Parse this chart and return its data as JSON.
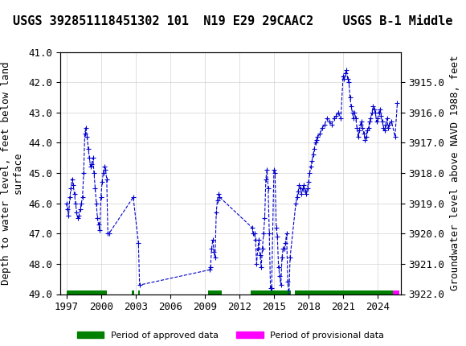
{
  "title": "USGS 392851118451302 101  N19 E29 29CAAC2    USGS B-1 Middle",
  "ylabel_left": "Depth to water level, feet below land\nsurface",
  "ylabel_right": "Groundwater level above NAVD 1988, feet",
  "xlabel": "",
  "ylim_left": [
    41.0,
    49.0
  ],
  "ylim_right": [
    3915.0,
    3922.0
  ],
  "yticks_left": [
    41.0,
    42.0,
    43.0,
    44.0,
    45.0,
    46.0,
    47.0,
    48.0,
    49.0
  ],
  "yticks_right": [
    3915.0,
    3916.0,
    3917.0,
    3918.0,
    3919.0,
    3920.0,
    3921.0,
    3922.0
  ],
  "xlim": [
    1996.5,
    2026.0
  ],
  "xticks": [
    1997,
    2000,
    2003,
    2006,
    2009,
    2012,
    2015,
    2018,
    2021,
    2024
  ],
  "background_color": "#f0f0f0",
  "plot_bg_color": "#ffffff",
  "header_color": "#1a6b3c",
  "data_color": "#0000cc",
  "approved_color": "#008000",
  "provisional_color": "#ff00ff",
  "title_fontsize": 11,
  "axis_label_fontsize": 9,
  "tick_fontsize": 9,
  "approved_periods": [
    [
      1997.0,
      2000.5
    ],
    [
      2002.7,
      2002.85
    ],
    [
      2003.2,
      2003.4
    ],
    [
      2009.3,
      2010.5
    ],
    [
      2013.0,
      2016.5
    ],
    [
      2016.8,
      2025.3
    ]
  ],
  "provisional_periods": [
    [
      2025.3,
      2025.9
    ]
  ],
  "data_points": {
    "years": [
      1997.0,
      1997.1,
      1997.2,
      1997.3,
      1997.4,
      1997.5,
      1997.6,
      1997.7,
      1997.8,
      1997.9,
      1998.0,
      1998.1,
      1998.2,
      1998.3,
      1998.4,
      1998.5,
      1998.6,
      1998.7,
      1998.8,
      1998.9,
      1999.0,
      1999.1,
      1999.2,
      1999.3,
      1999.4,
      1999.5,
      1999.6,
      1999.7,
      1999.8,
      1999.9,
      2000.0,
      2000.1,
      2000.2,
      2000.3,
      2000.4,
      2000.5,
      2000.6,
      2000.7,
      2002.8,
      2003.25,
      2003.35,
      2009.4,
      2009.5,
      2009.6,
      2009.7,
      2009.8,
      2009.9,
      2010.0,
      2010.1,
      2010.2,
      2010.3,
      2013.1,
      2013.2,
      2013.3,
      2013.4,
      2013.5,
      2013.6,
      2013.7,
      2013.8,
      2013.9,
      2014.0,
      2014.1,
      2014.2,
      2014.3,
      2014.4,
      2014.5,
      2014.6,
      2014.7,
      2014.8,
      2015.0,
      2015.1,
      2015.2,
      2015.3,
      2015.4,
      2015.5,
      2015.6,
      2015.7,
      2015.8,
      2015.9,
      2016.0,
      2016.1,
      2016.2,
      2016.3,
      2016.4,
      2016.9,
      2017.0,
      2017.1,
      2017.2,
      2017.3,
      2017.4,
      2017.5,
      2017.6,
      2017.7,
      2017.8,
      2017.9,
      2018.0,
      2018.1,
      2018.2,
      2018.3,
      2018.4,
      2018.5,
      2018.6,
      2018.7,
      2018.8,
      2019.0,
      2019.2,
      2019.4,
      2019.6,
      2019.8,
      2020.0,
      2020.2,
      2020.4,
      2020.6,
      2020.8,
      2021.0,
      2021.1,
      2021.2,
      2021.3,
      2021.4,
      2021.5,
      2021.6,
      2021.7,
      2021.8,
      2021.9,
      2022.0,
      2022.1,
      2022.2,
      2022.3,
      2022.4,
      2022.5,
      2022.6,
      2022.7,
      2022.8,
      2022.9,
      2023.0,
      2023.1,
      2023.2,
      2023.3,
      2023.4,
      2023.5,
      2023.6,
      2023.7,
      2023.8,
      2023.9,
      2024.0,
      2024.1,
      2024.2,
      2024.3,
      2024.4,
      2024.5,
      2024.6,
      2024.7,
      2024.8,
      2024.9,
      2025.0,
      2025.2,
      2025.5,
      2025.7
    ],
    "depth": [
      46.0,
      46.2,
      46.4,
      45.8,
      45.5,
      45.2,
      45.4,
      45.7,
      46.0,
      46.3,
      46.5,
      46.4,
      46.2,
      46.0,
      45.8,
      45.0,
      43.7,
      43.5,
      43.8,
      44.2,
      44.5,
      44.8,
      44.7,
      44.5,
      45.0,
      45.5,
      46.0,
      46.5,
      46.7,
      46.9,
      45.8,
      45.3,
      45.0,
      44.8,
      44.9,
      45.2,
      47.0,
      47.0,
      45.8,
      47.3,
      48.7,
      48.2,
      48.1,
      47.5,
      47.2,
      47.6,
      47.8,
      46.3,
      45.9,
      45.7,
      45.8,
      46.8,
      47.0,
      47.0,
      47.2,
      48.0,
      47.5,
      47.2,
      47.7,
      48.1,
      47.5,
      47.0,
      46.5,
      45.2,
      44.9,
      45.5,
      47.0,
      48.8,
      48.8,
      44.9,
      45.0,
      46.8,
      47.1,
      48.1,
      48.4,
      48.7,
      47.8,
      47.5,
      47.5,
      47.3,
      47.0,
      48.6,
      49.1,
      47.8,
      46.0,
      45.8,
      45.6,
      45.4,
      45.5,
      45.7,
      45.5,
      45.4,
      45.6,
      45.7,
      45.5,
      45.3,
      45.0,
      44.8,
      44.6,
      44.4,
      44.2,
      44.0,
      43.9,
      43.8,
      43.7,
      43.5,
      43.4,
      43.2,
      43.3,
      43.4,
      43.2,
      43.1,
      43.0,
      43.2,
      41.8,
      41.9,
      41.7,
      41.6,
      41.9,
      42.0,
      42.5,
      42.8,
      43.0,
      43.2,
      43.0,
      43.2,
      43.5,
      43.8,
      43.6,
      43.4,
      43.3,
      43.5,
      43.7,
      43.9,
      43.8,
      43.6,
      43.5,
      43.3,
      43.2,
      43.0,
      42.8,
      42.9,
      43.0,
      43.3,
      43.2,
      43.0,
      42.9,
      43.1,
      43.3,
      43.5,
      43.6,
      43.4,
      43.2,
      43.5,
      43.4,
      43.3,
      43.8,
      42.7
    ]
  }
}
